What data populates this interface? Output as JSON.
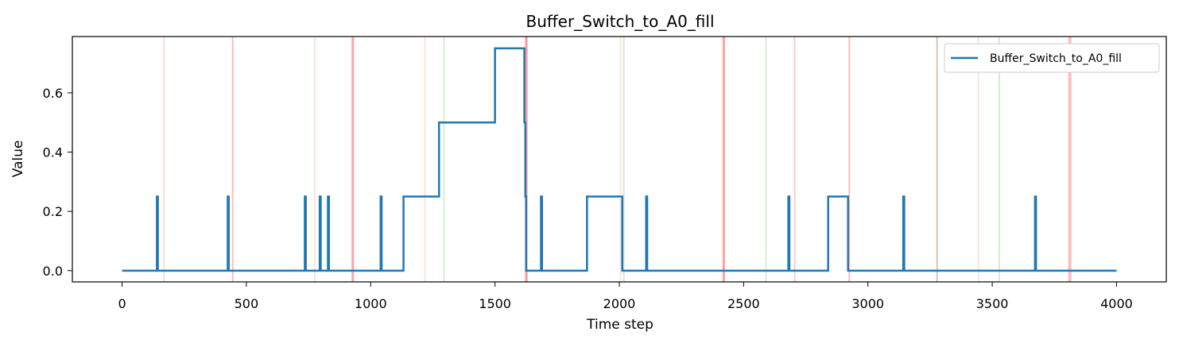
{
  "chart_data": {
    "type": "line",
    "title": "Buffer_Switch_to_A0_fill",
    "xlabel": "Time step",
    "ylabel": "Value",
    "xlim": [
      -200,
      4200
    ],
    "ylim": [
      -0.038,
      0.79
    ],
    "xticks": [
      0,
      500,
      1000,
      1500,
      2000,
      2500,
      3000,
      3500,
      4000
    ],
    "yticks": [
      0.0,
      0.2,
      0.4,
      0.6
    ],
    "xtick_labels": [
      "0",
      "500",
      "1000",
      "1500",
      "2000",
      "2500",
      "3000",
      "3500",
      "4000"
    ],
    "ytick_labels": [
      "0.0",
      "0.2",
      "0.4",
      "0.6"
    ],
    "grid": false,
    "legend_position": "top-right",
    "series": [
      {
        "name": "Buffer_Switch_to_A0_fill",
        "color": "#1f77b4",
        "points": [
          [
            0,
            0
          ],
          [
            140,
            0
          ],
          [
            140,
            0.25
          ],
          [
            144,
            0.25
          ],
          [
            144,
            0
          ],
          [
            425,
            0
          ],
          [
            425,
            0.25
          ],
          [
            429,
            0.25
          ],
          [
            429,
            0
          ],
          [
            735,
            0
          ],
          [
            735,
            0.25
          ],
          [
            739,
            0.25
          ],
          [
            739,
            0
          ],
          [
            795,
            0
          ],
          [
            795,
            0.25
          ],
          [
            799,
            0.25
          ],
          [
            799,
            0
          ],
          [
            828,
            0
          ],
          [
            828,
            0.25
          ],
          [
            832,
            0.25
          ],
          [
            832,
            0
          ],
          [
            1040,
            0
          ],
          [
            1040,
            0.25
          ],
          [
            1044,
            0.25
          ],
          [
            1044,
            0
          ],
          [
            1132,
            0
          ],
          [
            1132,
            0.25
          ],
          [
            1275,
            0.25
          ],
          [
            1275,
            0.5
          ],
          [
            1500,
            0.5
          ],
          [
            1500,
            0.75
          ],
          [
            1618,
            0.75
          ],
          [
            1618,
            0.5
          ],
          [
            1622,
            0.5
          ],
          [
            1622,
            0.25
          ],
          [
            1625,
            0.25
          ],
          [
            1625,
            0
          ],
          [
            1685,
            0
          ],
          [
            1685,
            0.25
          ],
          [
            1689,
            0.25
          ],
          [
            1689,
            0
          ],
          [
            1870,
            0
          ],
          [
            1870,
            0.25
          ],
          [
            2012,
            0.25
          ],
          [
            2012,
            0
          ],
          [
            2108,
            0
          ],
          [
            2108,
            0.25
          ],
          [
            2112,
            0.25
          ],
          [
            2112,
            0
          ],
          [
            2680,
            0
          ],
          [
            2680,
            0.25
          ],
          [
            2684,
            0.25
          ],
          [
            2684,
            0
          ],
          [
            2840,
            0
          ],
          [
            2840,
            0.25
          ],
          [
            2920,
            0.25
          ],
          [
            2920,
            0
          ],
          [
            3142,
            0
          ],
          [
            3142,
            0.25
          ],
          [
            3146,
            0.25
          ],
          [
            3146,
            0
          ],
          [
            3672,
            0
          ],
          [
            3672,
            0.25
          ],
          [
            3676,
            0.25
          ],
          [
            3676,
            0
          ],
          [
            4000,
            0
          ]
        ]
      }
    ],
    "event_lines": [
      {
        "x": 168,
        "color": "#f4a582",
        "opacity": 0.35,
        "width": 2
      },
      {
        "x": 445,
        "color": "#ff6b6b",
        "opacity": 0.45,
        "width": 2
      },
      {
        "x": 775,
        "color": "#f4a582",
        "opacity": 0.3,
        "width": 2
      },
      {
        "x": 928,
        "color": "#ff6b6b",
        "opacity": 0.6,
        "width": 3
      },
      {
        "x": 1218,
        "color": "#f4a582",
        "opacity": 0.3,
        "width": 2
      },
      {
        "x": 1295,
        "color": "#9ed19e",
        "opacity": 0.4,
        "width": 2
      },
      {
        "x": 1626,
        "color": "#ff6b6b",
        "opacity": 0.7,
        "width": 3
      },
      {
        "x": 2005,
        "color": "#f4a582",
        "opacity": 0.3,
        "width": 2
      },
      {
        "x": 2018,
        "color": "#9ed19e",
        "opacity": 0.45,
        "width": 2
      },
      {
        "x": 2420,
        "color": "#ff6b6b",
        "opacity": 0.65,
        "width": 3
      },
      {
        "x": 2590,
        "color": "#9ed19e",
        "opacity": 0.4,
        "width": 2
      },
      {
        "x": 2705,
        "color": "#ff6b6b",
        "opacity": 0.35,
        "width": 2
      },
      {
        "x": 2925,
        "color": "#ff6b6b",
        "opacity": 0.45,
        "width": 2
      },
      {
        "x": 3278,
        "color": "#b39a6b",
        "opacity": 0.55,
        "width": 2
      },
      {
        "x": 3445,
        "color": "#f4a582",
        "opacity": 0.3,
        "width": 2
      },
      {
        "x": 3528,
        "color": "#9ed19e",
        "opacity": 0.45,
        "width": 2
      },
      {
        "x": 3812,
        "color": "#ff6b6b",
        "opacity": 0.45,
        "width": 4
      }
    ]
  }
}
